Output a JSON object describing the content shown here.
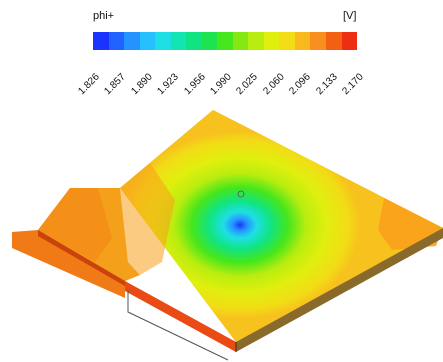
{
  "legend": {
    "variable": "phi+",
    "unit": "[V]",
    "colors": [
      "#1a33ff",
      "#1f62ff",
      "#2593ff",
      "#27c0ff",
      "#1edfe6",
      "#12e5b4",
      "#10e482",
      "#1ce34f",
      "#45e61c",
      "#86e813",
      "#b9ed0f",
      "#e0ef0e",
      "#f2dc16",
      "#f9b91e",
      "#f88f1e",
      "#f36014",
      "#ec2f12"
    ],
    "ticks": [
      "1.826",
      "1.857",
      "1.890",
      "1.923",
      "1.956",
      "1.990",
      "2.025",
      "2.060",
      "2.096",
      "2.133",
      "2.170"
    ]
  },
  "field": {
    "min": 1.826,
    "max": 2.17
  }
}
